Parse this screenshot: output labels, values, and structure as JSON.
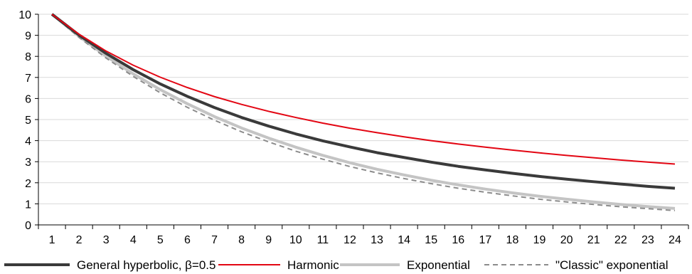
{
  "chart_data": {
    "type": "line",
    "title": "",
    "xlabel": "",
    "ylabel": "",
    "x": [
      1,
      2,
      3,
      4,
      5,
      6,
      7,
      8,
      9,
      10,
      11,
      12,
      13,
      14,
      15,
      16,
      17,
      18,
      19,
      20,
      21,
      22,
      23,
      24
    ],
    "ylim": [
      0,
      10
    ],
    "yticks": [
      0,
      1,
      2,
      3,
      4,
      5,
      6,
      7,
      8,
      9,
      10
    ],
    "grid": "horizontal",
    "legend_position": "bottom",
    "series": [
      {
        "name": "General hyperbolic, β=0.5",
        "color": "#3a3a3a",
        "style": "solid-thick",
        "values": [
          10.0,
          9.01,
          8.14,
          7.37,
          6.69,
          6.1,
          5.57,
          5.1,
          4.69,
          4.32,
          3.99,
          3.7,
          3.43,
          3.2,
          2.98,
          2.78,
          2.61,
          2.45,
          2.3,
          2.17,
          2.05,
          1.94,
          1.83,
          1.74
        ]
      },
      {
        "name": "Harmonic",
        "color": "#e30613",
        "style": "solid",
        "values": [
          10.0,
          9.05,
          8.25,
          7.58,
          7.01,
          6.52,
          6.09,
          5.72,
          5.39,
          5.1,
          4.83,
          4.59,
          4.38,
          4.18,
          4.0,
          3.84,
          3.69,
          3.55,
          3.42,
          3.3,
          3.19,
          3.08,
          2.98,
          2.89
        ]
      },
      {
        "name": "Exponential",
        "color": "#c4c4c4",
        "style": "solid-thick",
        "values": [
          10.0,
          8.95,
          8.01,
          7.17,
          6.42,
          5.75,
          5.14,
          4.6,
          4.12,
          3.69,
          3.3,
          2.95,
          2.64,
          2.37,
          2.12,
          1.9,
          1.7,
          1.52,
          1.36,
          1.22,
          1.09,
          0.97,
          0.87,
          0.78
        ]
      },
      {
        "name": "\"Classic\" exponential",
        "color": "#8c8c8c",
        "style": "dashed",
        "values": [
          10.0,
          8.9,
          7.92,
          7.05,
          6.27,
          5.58,
          4.97,
          4.42,
          3.94,
          3.5,
          3.12,
          2.77,
          2.47,
          2.2,
          1.96,
          1.74,
          1.55,
          1.38,
          1.22,
          1.09,
          0.97,
          0.86,
          0.77,
          0.68
        ]
      }
    ]
  }
}
